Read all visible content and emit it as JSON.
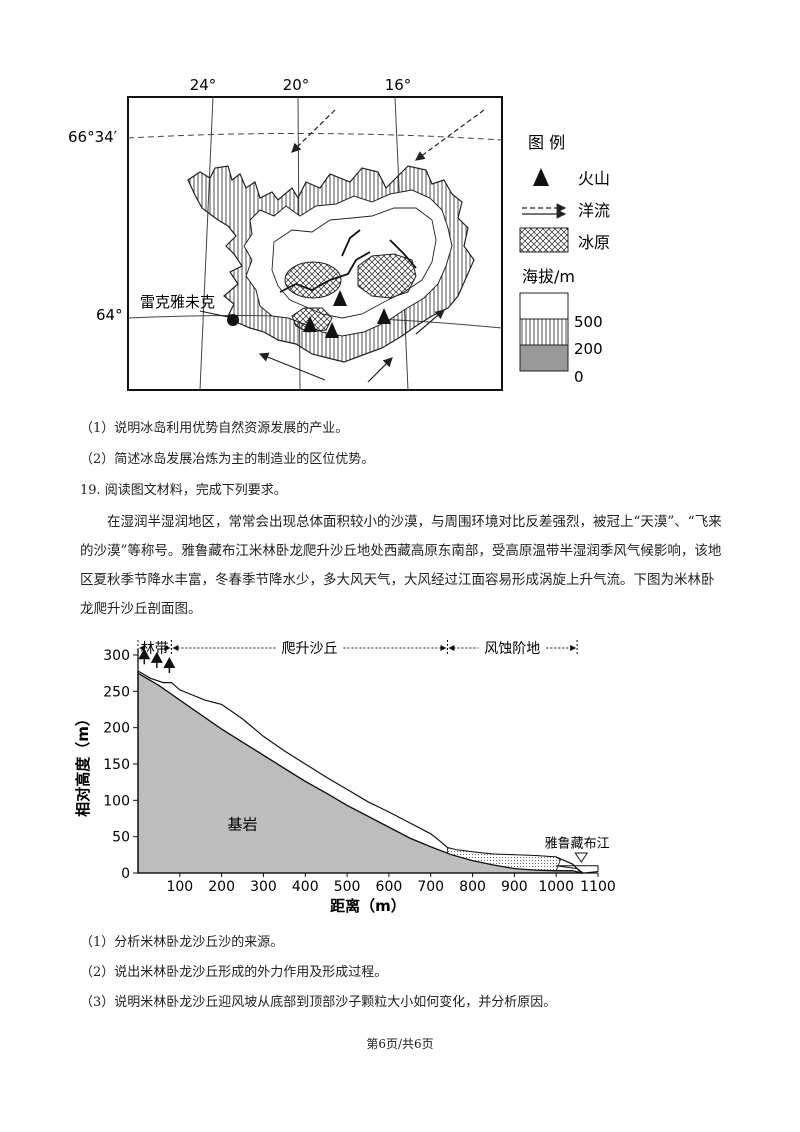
{
  "map": {
    "lon_labels": [
      "24°",
      "20°",
      "16°"
    ],
    "lat_labels": [
      "66°34′",
      "64°"
    ],
    "city": "雷克雅未克",
    "legend": {
      "title": "图 例",
      "volcano": "火山",
      "current": "洋流",
      "icefield": "冰原",
      "elev_title": "海拔/m",
      "elev_ticks": [
        "500",
        "200",
        "0"
      ]
    }
  },
  "q18": {
    "items": [
      "（1）说明冰岛利用优势自然资源发展的产业。",
      "（2）简述冰岛发展冶炼为主的制造业的区位优势。"
    ]
  },
  "q19": {
    "heading": "19. 阅读图文材料，完成下列要求。",
    "paragraph": "在湿润半湿润地区，常常会出现总体面积较小的沙漠，与周围环境对比反差强烈，被冠上“天漠”、“飞来的沙漠”等称号。雅鲁藏布江米林卧龙爬升沙丘地处西藏高原东南部，受高原温带半湿润季风气候影响，该地区夏秋季节降水丰富，冬春季节降水少，多大风天气，大风经过江面容易形成涡旋上升气流。下图为米林卧龙爬升沙丘剖面图。",
    "items": [
      "（1）分析米林卧龙沙丘沙的来源。",
      "（2）说出米林卧龙沙丘形成的外力作用及形成过程。",
      "（3）说明米林卧龙沙丘迎风坡从底部到顶部沙子颗粒大小如何变化，并分析原因。"
    ]
  },
  "chart_data": {
    "type": "area",
    "xlabel": "距离（m）",
    "ylabel": "相对高度（m）",
    "xlim": [
      0,
      1100
    ],
    "ylim": [
      0,
      300
    ],
    "x_ticks": [
      100,
      200,
      300,
      400,
      500,
      600,
      700,
      800,
      900,
      1000,
      1100
    ],
    "y_ticks": [
      0,
      50,
      100,
      150,
      200,
      250,
      300
    ],
    "zones": [
      {
        "name": "林带",
        "from": 0,
        "to": 80
      },
      {
        "name": "爬升沙丘",
        "from": 80,
        "to": 740
      },
      {
        "name": "风蚀阶地",
        "from": 740,
        "to": 1050
      }
    ],
    "bedrock_label": "基岩",
    "river_label": "雅鲁藏布江",
    "bedrock_surface": [
      [
        0,
        275
      ],
      [
        50,
        258
      ],
      [
        100,
        238
      ],
      [
        150,
        218
      ],
      [
        200,
        198
      ],
      [
        250,
        180
      ],
      [
        300,
        162
      ],
      [
        350,
        144
      ],
      [
        400,
        126
      ],
      [
        450,
        110
      ],
      [
        500,
        93
      ],
      [
        550,
        78
      ],
      [
        600,
        63
      ],
      [
        650,
        48
      ],
      [
        700,
        36
      ],
      [
        750,
        25
      ],
      [
        800,
        17
      ],
      [
        850,
        11
      ],
      [
        900,
        6
      ],
      [
        950,
        4
      ],
      [
        1000,
        3
      ],
      [
        1040,
        3
      ],
      [
        1060,
        0
      ]
    ],
    "sand_surface": [
      [
        0,
        278
      ],
      [
        30,
        268
      ],
      [
        60,
        262
      ],
      [
        80,
        262
      ],
      [
        100,
        252
      ],
      [
        130,
        245
      ],
      [
        160,
        238
      ],
      [
        200,
        232
      ],
      [
        250,
        212
      ],
      [
        300,
        188
      ],
      [
        350,
        168
      ],
      [
        400,
        150
      ],
      [
        450,
        132
      ],
      [
        500,
        115
      ],
      [
        550,
        98
      ],
      [
        600,
        84
      ],
      [
        650,
        69
      ],
      [
        700,
        54
      ],
      [
        720,
        45
      ],
      [
        740,
        35
      ],
      [
        760,
        32
      ],
      [
        800,
        29
      ],
      [
        850,
        26
      ],
      [
        900,
        25
      ],
      [
        950,
        24
      ],
      [
        1000,
        22
      ],
      [
        1040,
        12
      ],
      [
        1060,
        0
      ]
    ]
  },
  "footer": "第6页/共6页"
}
